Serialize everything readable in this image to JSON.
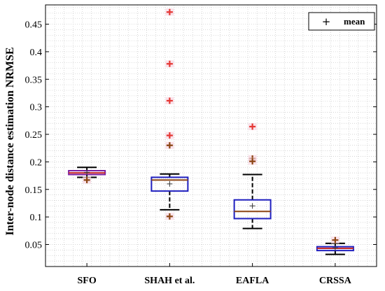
{
  "chart_data": {
    "type": "box",
    "ylabel": "Inter-node distance estimation NRMSE",
    "xlabel": "",
    "ylim": [
      0.01,
      0.485
    ],
    "yticks": [
      0.05,
      0.1,
      0.15,
      0.2,
      0.25,
      0.3,
      0.35,
      0.4,
      0.45
    ],
    "grid": "minor-dotted",
    "legend": {
      "position": "top-right",
      "entries": [
        {
          "marker": "+",
          "label": "mean"
        }
      ]
    },
    "categories": [
      "SFO",
      "SHAH et al.",
      "EAFLA",
      "CRSSA"
    ],
    "boxes": [
      {
        "category": "SFO",
        "whisker_low": 0.172,
        "q1": 0.177,
        "median": 0.18,
        "q3": 0.184,
        "whisker_high": 0.19,
        "mean": 0.181,
        "box_color": "#7b1fa2",
        "median_color": "#c62828",
        "outliers": [
          {
            "value": 0.167,
            "color": "#8b4513"
          }
        ]
      },
      {
        "category": "SHAH et al.",
        "whisker_low": 0.113,
        "q1": 0.147,
        "median": 0.167,
        "q3": 0.172,
        "whisker_high": 0.178,
        "mean": 0.16,
        "box_color": "#1f1fbf",
        "median_color": "#8b4513",
        "outliers": [
          {
            "value": 0.472,
            "color": "#e53935"
          },
          {
            "value": 0.378,
            "color": "#e53935"
          },
          {
            "value": 0.311,
            "color": "#e53935"
          },
          {
            "value": 0.248,
            "color": "#e53935"
          },
          {
            "value": 0.23,
            "color": "#8b4513"
          },
          {
            "value": 0.101,
            "color": "#8b4513"
          }
        ]
      },
      {
        "category": "EAFLA",
        "whisker_low": 0.079,
        "q1": 0.097,
        "median": 0.11,
        "q3": 0.131,
        "whisker_high": 0.177,
        "mean": 0.12,
        "box_color": "#1f1fbf",
        "median_color": "#8b4513",
        "outliers": [
          {
            "value": 0.264,
            "color": "#e53935"
          },
          {
            "value": 0.206,
            "color": "#8b4513"
          },
          {
            "value": 0.201,
            "color": "#8b4513"
          }
        ]
      },
      {
        "category": "CRSSA",
        "whisker_low": 0.032,
        "q1": 0.039,
        "median": 0.043,
        "q3": 0.046,
        "whisker_high": 0.052,
        "mean": 0.044,
        "box_color": "#1f1fbf",
        "median_color": "#c62828",
        "outliers": [
          {
            "value": 0.058,
            "color": "#8b4513"
          }
        ]
      }
    ]
  }
}
